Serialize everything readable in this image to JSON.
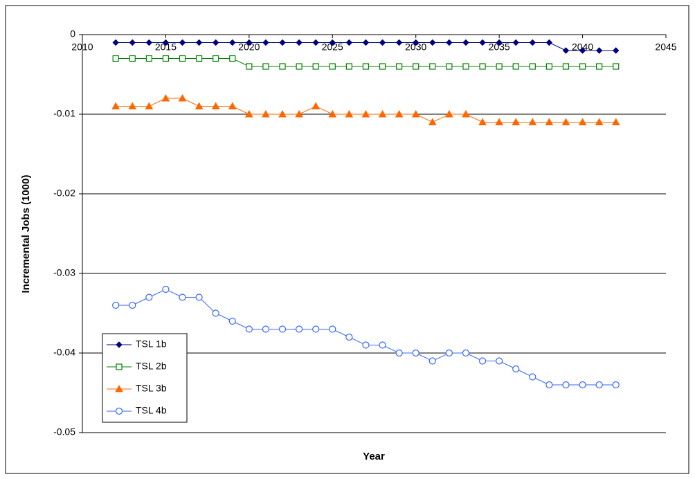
{
  "chart_data": {
    "type": "line",
    "xlabel": "Year",
    "ylabel": "Incremental Jobs (1000)",
    "x": [
      2012,
      2013,
      2014,
      2015,
      2016,
      2017,
      2018,
      2019,
      2020,
      2021,
      2022,
      2023,
      2024,
      2025,
      2026,
      2027,
      2028,
      2029,
      2030,
      2031,
      2032,
      2033,
      2034,
      2035,
      2036,
      2037,
      2038,
      2039,
      2040,
      2041,
      2042
    ],
    "xlim": [
      2010,
      2045
    ],
    "xticks": [
      2010,
      2015,
      2020,
      2025,
      2030,
      2035,
      2040,
      2045
    ],
    "ylim": [
      -0.05,
      0
    ],
    "yticks": [
      0,
      -0.01,
      -0.02,
      -0.03,
      -0.04,
      -0.05
    ],
    "grid": true,
    "legend": "lower left",
    "series": [
      {
        "name": "TSL 1b",
        "color": "#000080",
        "marker": "diamond",
        "values": [
          -0.001,
          -0.001,
          -0.001,
          -0.001,
          -0.001,
          -0.001,
          -0.001,
          -0.001,
          -0.001,
          -0.001,
          -0.001,
          -0.001,
          -0.001,
          -0.001,
          -0.001,
          -0.001,
          -0.001,
          -0.001,
          -0.001,
          -0.001,
          -0.001,
          -0.001,
          -0.001,
          -0.001,
          -0.001,
          -0.001,
          -0.001,
          -0.002,
          -0.002,
          -0.002,
          -0.002
        ]
      },
      {
        "name": "TSL 2b",
        "color": "#008000",
        "marker": "square",
        "values": [
          -0.003,
          -0.003,
          -0.003,
          -0.003,
          -0.003,
          -0.003,
          -0.003,
          -0.003,
          -0.004,
          -0.004,
          -0.004,
          -0.004,
          -0.004,
          -0.004,
          -0.004,
          -0.004,
          -0.004,
          -0.004,
          -0.004,
          -0.004,
          -0.004,
          -0.004,
          -0.004,
          -0.004,
          -0.004,
          -0.004,
          -0.004,
          -0.004,
          -0.004,
          -0.004,
          -0.004
        ]
      },
      {
        "name": "TSL 3b",
        "color": "#FF6600",
        "marker": "triangle",
        "values": [
          -0.009,
          -0.009,
          -0.009,
          -0.008,
          -0.008,
          -0.009,
          -0.009,
          -0.009,
          -0.01,
          -0.01,
          -0.01,
          -0.01,
          -0.009,
          -0.01,
          -0.01,
          -0.01,
          -0.01,
          -0.01,
          -0.01,
          -0.011,
          -0.01,
          -0.01,
          -0.011,
          -0.011,
          -0.011,
          -0.011,
          -0.011,
          -0.011,
          -0.011,
          -0.011,
          -0.011
        ]
      },
      {
        "name": "TSL 4b",
        "color": "#3366FF",
        "marker": "circle",
        "values": [
          -0.034,
          -0.034,
          -0.033,
          -0.032,
          -0.033,
          -0.033,
          -0.035,
          -0.036,
          -0.037,
          -0.037,
          -0.037,
          -0.037,
          -0.037,
          -0.037,
          -0.038,
          -0.039,
          -0.039,
          -0.04,
          -0.04,
          -0.041,
          -0.04,
          -0.04,
          -0.041,
          -0.041,
          -0.042,
          -0.043,
          -0.044,
          -0.044,
          -0.044,
          -0.044,
          -0.044
        ]
      }
    ]
  }
}
